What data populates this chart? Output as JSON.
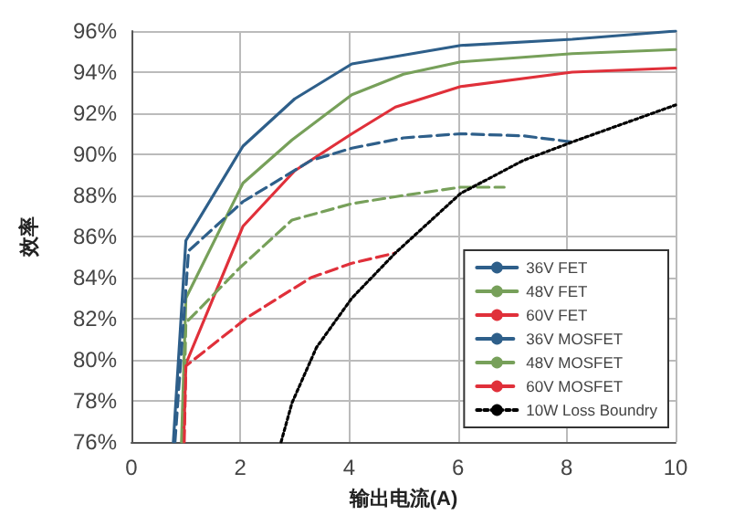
{
  "chart_data": {
    "type": "line",
    "xlabel": "输出电流(A)",
    "ylabel": "效率",
    "xlim": [
      0,
      10
    ],
    "xticks": [
      0,
      2,
      4,
      6,
      8,
      10
    ],
    "ylim": [
      76,
      96
    ],
    "yticks": [
      {
        "value": 76,
        "label": "76%"
      },
      {
        "value": 78,
        "label": "78%"
      },
      {
        "value": 80,
        "label": "80%"
      },
      {
        "value": 82,
        "label": "82%"
      },
      {
        "value": 84,
        "label": "84%"
      },
      {
        "value": 86,
        "label": "86%"
      },
      {
        "value": 88,
        "label": "88%"
      },
      {
        "value": 90,
        "label": "90%"
      },
      {
        "value": 92,
        "label": "92%"
      },
      {
        "value": 94,
        "label": "94%"
      },
      {
        "value": 96,
        "label": "96%"
      }
    ],
    "grid": true,
    "legend": "bottom right",
    "marker": "none",
    "series": [
      {
        "name": "36V FET",
        "color": "#2e5f8a",
        "line_style": "solid",
        "x": [
          0.77,
          1.0,
          2.05,
          3.0,
          4.05,
          6.05,
          8.1,
          10
        ],
        "values": [
          76,
          85.8,
          90.4,
          92.7,
          94.4,
          95.3,
          95.6,
          96
        ]
      },
      {
        "name": "48V FET",
        "color": "#77a05a",
        "line_style": "solid",
        "x": [
          0.92,
          1.0,
          2.05,
          2.95,
          4.05,
          5.0,
          6.05,
          8.1,
          10
        ],
        "values": [
          76,
          83.0,
          88.6,
          90.7,
          92.9,
          93.9,
          94.5,
          94.9,
          95.1
        ]
      },
      {
        "name": "60V FET",
        "color": "#e0303a",
        "line_style": "solid",
        "x": [
          0.96,
          1.0,
          2.05,
          3.0,
          4.05,
          4.85,
          6.05,
          8.1,
          10
        ],
        "values": [
          76,
          79.8,
          86.5,
          89.2,
          91.0,
          92.3,
          93.3,
          94.0,
          94.2
        ]
      },
      {
        "name": "36V MOSFET",
        "color": "#2e5f8a",
        "line_style": "dashed",
        "x": [
          0.8,
          1.05,
          2.05,
          3.3,
          4.05,
          5.0,
          6.05,
          7.2,
          8.1
        ],
        "values": [
          76,
          85.3,
          87.7,
          89.7,
          90.3,
          90.8,
          91.0,
          90.9,
          90.6
        ]
      },
      {
        "name": "48V MOSFET",
        "color": "#77a05a",
        "line_style": "dashed",
        "x": [
          0.95,
          1.0,
          2.0,
          2.95,
          4.05,
          5.0,
          6.05,
          6.85
        ],
        "values": [
          76,
          81.8,
          84.5,
          86.8,
          87.6,
          88.0,
          88.4,
          88.4
        ]
      },
      {
        "name": "60V MOSFET",
        "color": "#e0303a",
        "line_style": "dashed",
        "x": [
          0.97,
          1.0,
          2.15,
          3.3,
          4.05,
          4.85
        ],
        "values": [
          76,
          79.7,
          82.1,
          84.0,
          84.7,
          85.2
        ]
      },
      {
        "name": "10W Loss Boundry",
        "color": "#000000",
        "line_style": "dotted",
        "x": [
          2.75,
          2.95,
          3.4,
          4.05,
          4.85,
          6.05,
          7.2,
          8.1,
          10
        ],
        "values": [
          76,
          77.9,
          80.6,
          83.0,
          85.2,
          88.1,
          89.7,
          90.6,
          92.4
        ]
      }
    ]
  }
}
